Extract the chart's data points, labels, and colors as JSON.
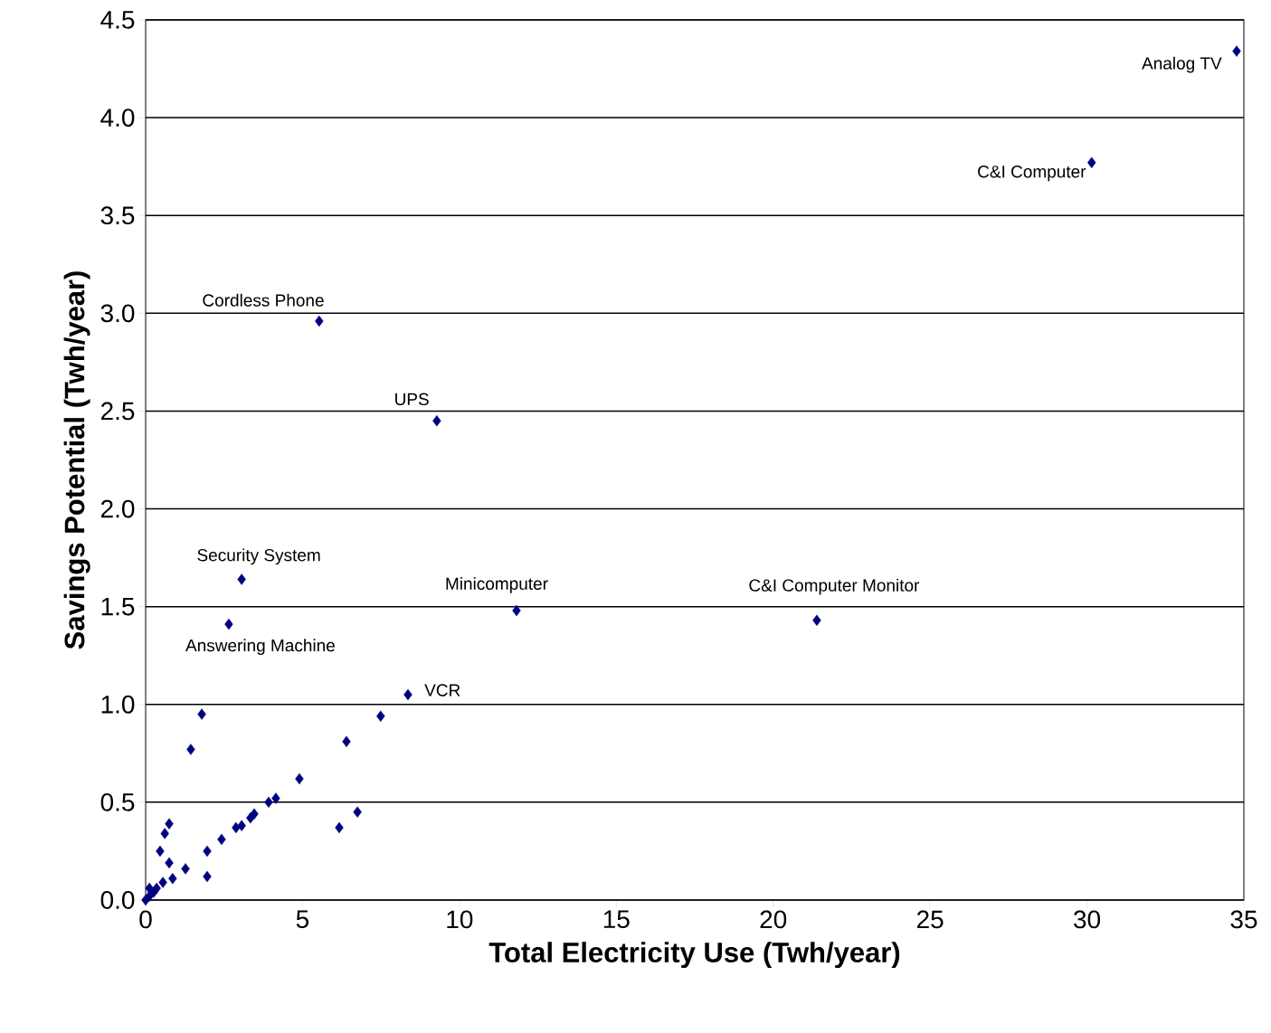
{
  "chart_data": {
    "type": "scatter",
    "xlabel": "Total Electricity Use (Twh/year)",
    "ylabel": "Savings Potential (Twh/year)",
    "x": [
      34.77,
      30.15,
      5.53,
      9.28,
      3.06,
      2.65,
      11.82,
      21.39,
      8.36,
      7.49,
      6.4,
      4.9,
      4.15,
      3.92,
      6.75,
      6.17,
      1.79,
      1.44,
      0.75,
      0.61,
      0.46,
      0.75,
      1.96,
      1.96,
      2.42,
      2.88,
      3.06,
      3.34,
      3.46,
      1.27,
      0.86,
      0.55,
      0.35,
      0.12,
      0.0,
      0.12,
      0.26
    ],
    "values": [
      4.34,
      3.77,
      2.96,
      2.45,
      1.64,
      1.41,
      1.48,
      1.43,
      1.05,
      0.94,
      0.81,
      0.62,
      0.52,
      0.5,
      0.45,
      0.37,
      0.95,
      0.77,
      0.39,
      0.34,
      0.25,
      0.19,
      0.25,
      0.12,
      0.31,
      0.37,
      0.38,
      0.42,
      0.44,
      0.16,
      0.11,
      0.09,
      0.06,
      0.02,
      0.0,
      0.06,
      0.04
    ],
    "color": "#000080",
    "marker": "diamond",
    "xlim": [
      0,
      35
    ],
    "xticks": [
      0,
      5,
      10,
      15,
      20,
      25,
      30,
      35
    ],
    "ylim": [
      0,
      4.5
    ],
    "yticks": [
      {
        "value": 0,
        "label": "0.0"
      },
      {
        "value": 0.5,
        "label": "0.5"
      },
      {
        "value": 1,
        "label": "1.0"
      },
      {
        "value": 1.5,
        "label": "1.5"
      },
      {
        "value": 2,
        "label": "2.0"
      },
      {
        "value": 2.5,
        "label": "2.5"
      },
      {
        "value": 3,
        "label": "3.0"
      },
      {
        "value": 3.5,
        "label": "3.5"
      },
      {
        "value": 4,
        "label": "4.0"
      },
      {
        "value": 4.5,
        "label": "4.5"
      }
    ],
    "grid": "y",
    "annotations": [
      {
        "text": "Analog TV",
        "x": 34.77,
        "y": 4.34
      },
      {
        "text": "C&I Computer",
        "x": 30.15,
        "y": 3.77
      },
      {
        "text": "Cordless Phone",
        "x": 5.53,
        "y": 2.96
      },
      {
        "text": "UPS",
        "x": 9.28,
        "y": 2.45
      },
      {
        "text": "Security System",
        "x": 3.06,
        "y": 1.64
      },
      {
        "text": "Answering Machine",
        "x": 2.65,
        "y": 1.41
      },
      {
        "text": "Minicomputer",
        "x": 11.82,
        "y": 1.48
      },
      {
        "text": "C&I Computer Monitor",
        "x": 21.39,
        "y": 1.43
      },
      {
        "text": "VCR",
        "x": 8.36,
        "y": 1.05
      }
    ]
  }
}
